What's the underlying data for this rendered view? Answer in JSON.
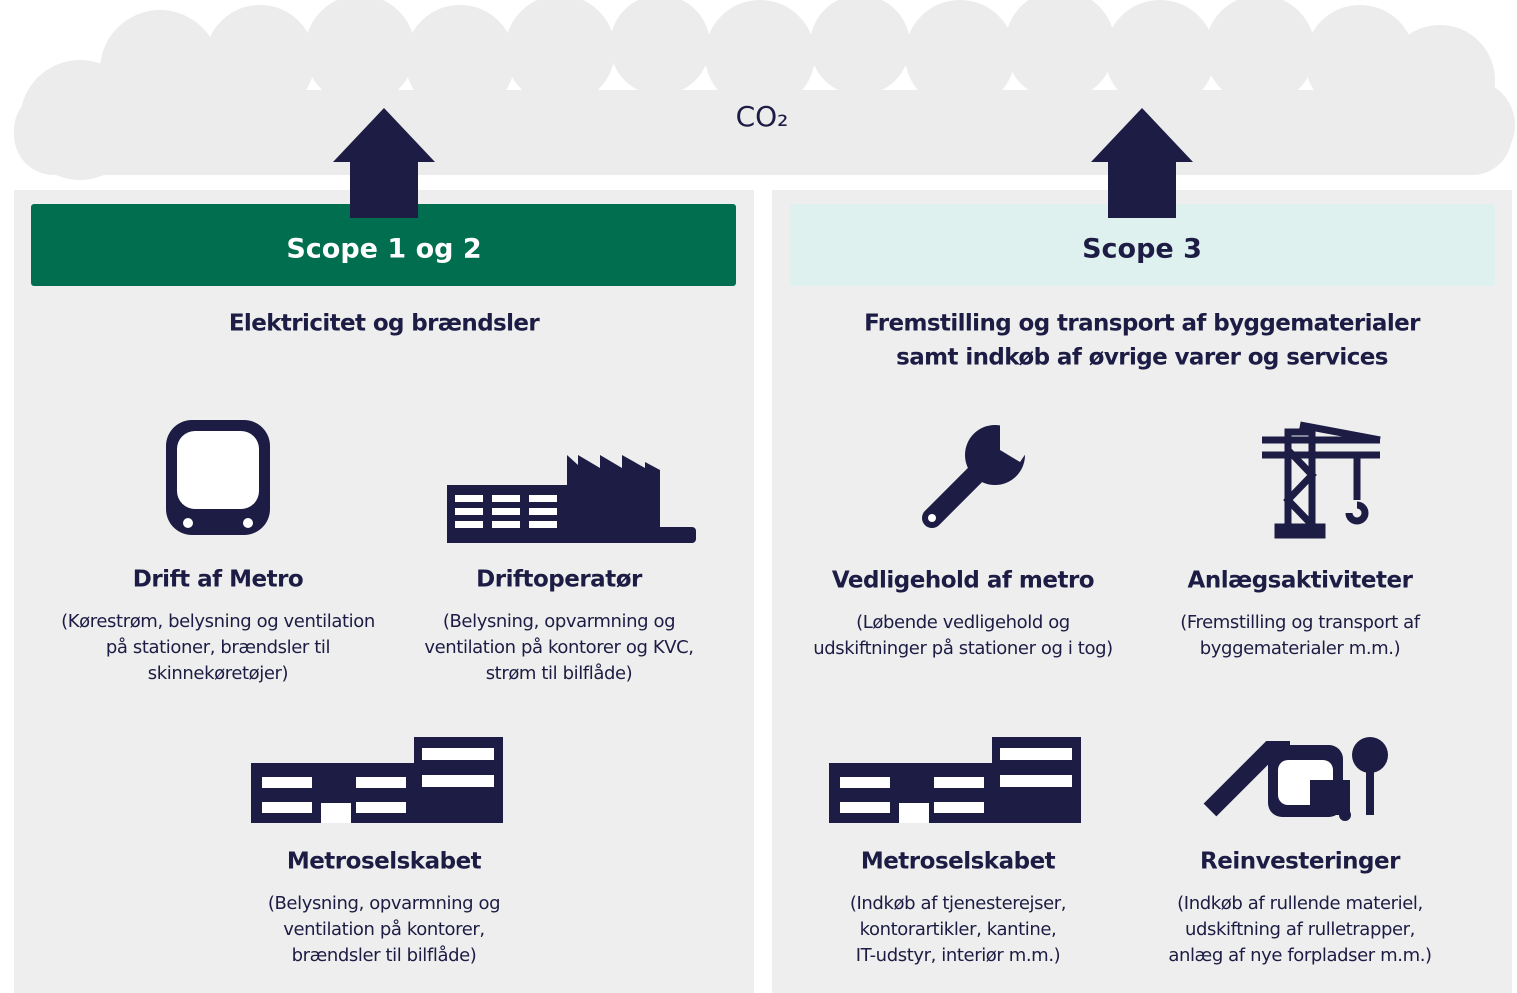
{
  "co2": "CO₂",
  "panels": [
    {
      "header": "Scope 1 og 2",
      "subtitle": [
        "Elektricitet og brændsler"
      ],
      "items": [
        {
          "title": "Drift af Metro",
          "description": [
            "(Kørestrøm, belysning og ventilation",
            "på stationer, brændsler til",
            "skinnekøretøjer)"
          ]
        },
        {
          "title": "Driftoperatør",
          "description": [
            "(Belysning, opvarmning og",
            "ventilation på kontorer og KVC,",
            "strøm til bilflåde)"
          ]
        },
        {
          "title": "Metroselskabet",
          "description": [
            "(Belysning, opvarmning og",
            "ventilation på kontorer,",
            "brændsler til bilflåde)"
          ]
        }
      ]
    },
    {
      "header": "Scope 3",
      "subtitle": [
        "Fremstilling og transport af byggematerialer",
        "samt indkøb af øvrige varer og services"
      ],
      "items": [
        {
          "title": "Vedligehold af metro",
          "description": [
            "(Løbende vedligehold og",
            "udskiftninger på stationer og i tog)"
          ]
        },
        {
          "title": "Anlægsaktiviteter",
          "description": [
            "(Fremstilling og transport af",
            "byggematerialer m.m.)"
          ]
        },
        {
          "title": "Metroselskabet",
          "description": [
            "(Indkøb af tjenesterejser,",
            "kontorartikler, kantine,",
            "IT-udstyr, interiør m.m.)"
          ]
        },
        {
          "title": "Reinvesteringer",
          "description": [
            "(Indkøb af rullende materiel,",
            "udskiftning af rulletrapper,",
            "anlæg af nye forpladser m.m.)"
          ]
        }
      ]
    }
  ]
}
